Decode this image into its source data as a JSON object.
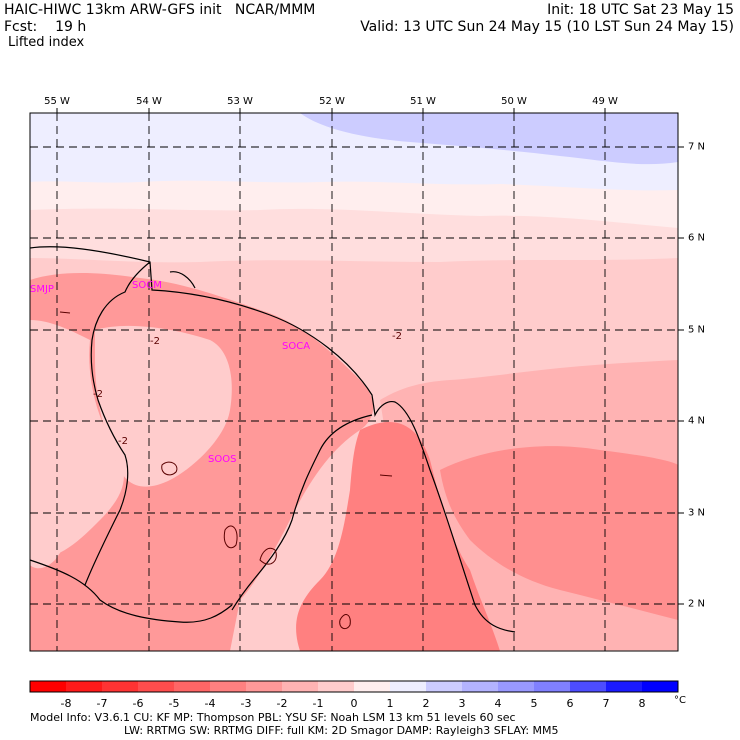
{
  "header": {
    "model": "HAIC-HIWC 13km ARW-GFS init",
    "center": "NCAR/MMM",
    "fcst_label": "Fcst:",
    "fcst_value": "19 h",
    "field": "Lifted index",
    "init": "Init: 18 UTC Sat 23 May 15",
    "valid": "Valid: 13 UTC Sun 24 May 15 (10 LST Sun 24 May 15)"
  },
  "axes": {
    "longitudes": [
      "55 W",
      "54 W",
      "53 W",
      "52 W",
      "51 W",
      "50 W",
      "49 W"
    ],
    "latitudes": [
      "7 N",
      "6 N",
      "5 N",
      "4 N",
      "3 N",
      "2 N"
    ]
  },
  "stations": [
    "SMJP",
    "SOCM",
    "SOCA",
    "SOOS"
  ],
  "contour_labels": [
    "-2",
    "-2",
    "-2",
    "-2"
  ],
  "colorbar": {
    "ticks": [
      "-8",
      "-7",
      "-6",
      "-5",
      "-4",
      "-3",
      "-2",
      "-1",
      "0",
      "1",
      "2",
      "3",
      "4",
      "5",
      "6",
      "7",
      "8"
    ],
    "unit": "°C",
    "colors": [
      "#ff0000",
      "#ff1a1a",
      "#ff3333",
      "#ff4d4d",
      "#ff6666",
      "#ff8080",
      "#ff9999",
      "#ffb3b3",
      "#ffcccc",
      "#ffeeee",
      "#eeeeff",
      "#ccccff",
      "#b3b3ff",
      "#9999ff",
      "#8080ff",
      "#4d4dff",
      "#1a1aff",
      "#0000ff"
    ]
  },
  "footer": {
    "line1": "Model Info: V3.6.1    CU: KF      MP: Thompson    PBL: YSU      SF: Noah LSM     13 km    51 levels   60 sec",
    "line2": "LW: RRTMG    SW: RRTMG  DIFF: full   KM: 2D Smagor DAMP: Rayleigh3  SFLAY: MM5"
  }
}
